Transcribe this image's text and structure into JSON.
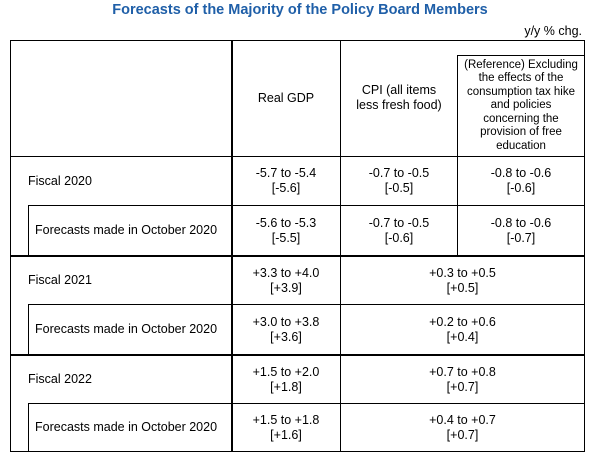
{
  "title": "Forecasts of the Majority of the Policy Board Members",
  "unit": "y/y % chg.",
  "headers": {
    "gdp": "Real GDP",
    "cpi": "CPI (all items less fresh food)",
    "ref": "(Reference) Excluding the effects of the consumption tax hike and policies concerning the provision of free education"
  },
  "rows": [
    {
      "label": "Fiscal 2020",
      "gdp_range": "-5.7 to -5.4",
      "gdp_median": "[-5.6]",
      "cpi_range": "-0.7 to -0.5",
      "cpi_median": "[-0.5]",
      "ref_range": "-0.8 to -0.6",
      "ref_median": "[-0.6]"
    },
    {
      "label": "Forecasts made in October 2020",
      "gdp_range": "-5.6 to -5.3",
      "gdp_median": "[-5.5]",
      "cpi_range": "-0.7 to -0.5",
      "cpi_median": "[-0.6]",
      "ref_range": "-0.8 to -0.6",
      "ref_median": "[-0.7]"
    },
    {
      "label": "Fiscal 2021",
      "gdp_range": "+3.3 to +4.0",
      "gdp_median": "[+3.9]",
      "cpi_range": "+0.3 to +0.5",
      "cpi_median": "[+0.5]"
    },
    {
      "label": "Forecasts made in October 2020",
      "gdp_range": "+3.0 to +3.8",
      "gdp_median": "[+3.6]",
      "cpi_range": "+0.2 to +0.6",
      "cpi_median": "[+0.4]"
    },
    {
      "label": "Fiscal 2022",
      "gdp_range": "+1.5 to +2.0",
      "gdp_median": "[+1.8]",
      "cpi_range": "+0.7 to +0.8",
      "cpi_median": "[+0.7]"
    },
    {
      "label": "Forecasts made in October 2020",
      "gdp_range": "+1.5 to +1.8",
      "gdp_median": "[+1.6]",
      "cpi_range": "+0.4 to +0.7",
      "cpi_median": "[+0.7]"
    }
  ]
}
